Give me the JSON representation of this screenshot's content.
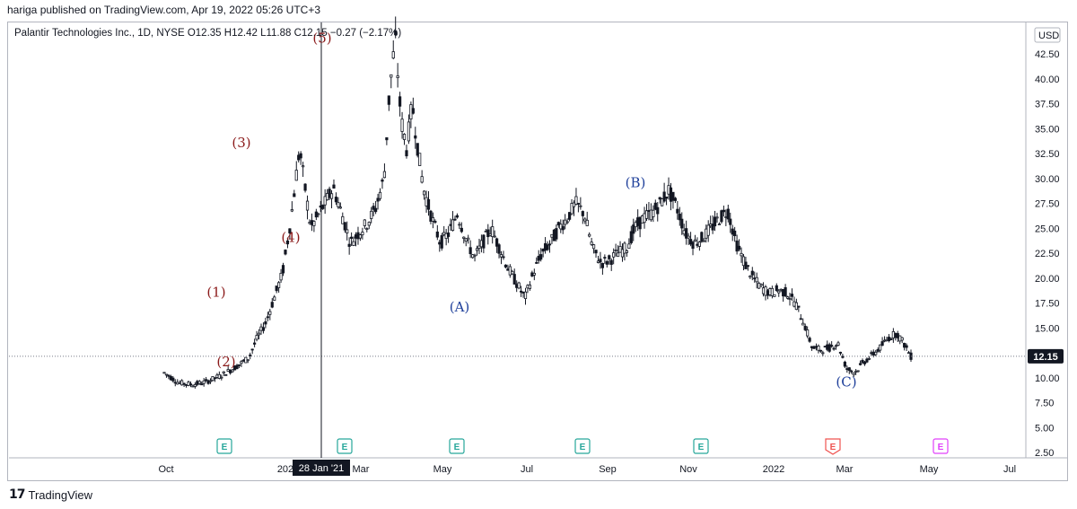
{
  "header": {
    "publish_line": "hariga published on TradingView.com, Apr 19, 2022 05:26 UTC+3"
  },
  "legend": {
    "symbol": "Palantir Technologies Inc., 1D, NYSE",
    "open": "O12.35",
    "high": "H12.42",
    "low": "L11.88",
    "close": "C12.15",
    "change": "−0.27 (−2.17%)"
  },
  "footer": {
    "logo_mark": "17",
    "logo_text": "TradingView"
  },
  "colors": {
    "candle": "#131722",
    "axis_border": "#b2b5be",
    "wave_dark_red": "#8b1a1a",
    "wave_blue": "#1e3f9a",
    "earnings_green": "#26a69a",
    "earnings_red": "#ef5350",
    "earnings_pink": "#e040fb",
    "axis_text": "#131722"
  },
  "chart_data": {
    "type": "candlestick",
    "currency_label": "USD",
    "y_ticks": [
      "2.50",
      "5.00",
      "7.50",
      "10.00",
      "12.50",
      "15.00",
      "17.50",
      "20.00",
      "22.50",
      "25.00",
      "27.50",
      "30.00",
      "32.50",
      "35.00",
      "37.50",
      "40.00",
      "42.50"
    ],
    "ylim": [
      0,
      45
    ],
    "x_ticks": [
      "Oct",
      "202",
      "Mar",
      "May",
      "Jul",
      "Sep",
      "Nov",
      "2022",
      "Mar",
      "May",
      "Jul"
    ],
    "crosshair_label": "28 Jan '21",
    "last_price_label": "12.15",
    "last_price": 12.15,
    "wave_labels_primary": [
      {
        "label": "(1)",
        "price": 18.5
      },
      {
        "label": "(2)",
        "price": 11.5
      },
      {
        "label": "(3)",
        "price": 33.5
      },
      {
        "label": "(4)",
        "price": 24.0
      },
      {
        "label": "(5)",
        "price": 44.0
      }
    ],
    "wave_labels_corrective": [
      {
        "label": "(A)",
        "price": 17.0
      },
      {
        "label": "(B)",
        "price": 29.5
      },
      {
        "label": "(C)",
        "price": 9.5
      }
    ],
    "earnings_markers": [
      "E",
      "E",
      "E",
      "E",
      "E",
      "E",
      "E"
    ],
    "price_path": [
      [
        0,
        10.5
      ],
      [
        5,
        9.5
      ],
      [
        10,
        9.3
      ],
      [
        15,
        9.6
      ],
      [
        20,
        10.2
      ],
      [
        25,
        11.0
      ],
      [
        30,
        12.0
      ],
      [
        33,
        14.0
      ],
      [
        36,
        15.5
      ],
      [
        39,
        18.0
      ],
      [
        42,
        20.5
      ],
      [
        45,
        26.0
      ],
      [
        48,
        33.0
      ],
      [
        50,
        29.0
      ],
      [
        52,
        25.0
      ],
      [
        55,
        26.5
      ],
      [
        58,
        28.0
      ],
      [
        60,
        29.0
      ],
      [
        63,
        26.5
      ],
      [
        66,
        23.5
      ],
      [
        69,
        24.5
      ],
      [
        72,
        25.5
      ],
      [
        75,
        27.0
      ],
      [
        78,
        30.0
      ],
      [
        80,
        39.0
      ],
      [
        82,
        44.0
      ],
      [
        84,
        36.0
      ],
      [
        86,
        33.0
      ],
      [
        88,
        37.5
      ],
      [
        90,
        33.0
      ],
      [
        92,
        29.0
      ],
      [
        95,
        26.0
      ],
      [
        98,
        23.5
      ],
      [
        101,
        24.5
      ],
      [
        104,
        26.5
      ],
      [
        107,
        24.0
      ],
      [
        110,
        22.0
      ],
      [
        113,
        23.5
      ],
      [
        116,
        25.0
      ],
      [
        119,
        23.0
      ],
      [
        122,
        21.0
      ],
      [
        125,
        19.5
      ],
      [
        128,
        18.0
      ],
      [
        131,
        20.5
      ],
      [
        134,
        22.5
      ],
      [
        137,
        23.5
      ],
      [
        140,
        25.0
      ],
      [
        143,
        26.0
      ],
      [
        146,
        27.5
      ],
      [
        149,
        26.5
      ],
      [
        152,
        23.0
      ],
      [
        155,
        21.5
      ],
      [
        158,
        21.8
      ],
      [
        161,
        22.5
      ],
      [
        164,
        23.0
      ],
      [
        167,
        25.0
      ],
      [
        170,
        26.0
      ],
      [
        173,
        26.5
      ],
      [
        176,
        27.5
      ],
      [
        179,
        28.8
      ],
      [
        182,
        27.0
      ],
      [
        185,
        24.5
      ],
      [
        188,
        23.5
      ],
      [
        191,
        24.0
      ],
      [
        194,
        25.0
      ],
      [
        197,
        26.0
      ],
      [
        200,
        26.8
      ],
      [
        203,
        23.5
      ],
      [
        206,
        21.5
      ],
      [
        209,
        20.0
      ],
      [
        212,
        19.0
      ],
      [
        215,
        18.5
      ],
      [
        218,
        18.8
      ],
      [
        221,
        18.5
      ],
      [
        224,
        17.5
      ],
      [
        227,
        15.5
      ],
      [
        230,
        13.0
      ],
      [
        233,
        12.8
      ],
      [
        236,
        13.0
      ],
      [
        239,
        13.5
      ],
      [
        242,
        11.0
      ],
      [
        245,
        10.5
      ],
      [
        248,
        11.5
      ],
      [
        251,
        12.2
      ],
      [
        254,
        13.0
      ],
      [
        257,
        14.0
      ],
      [
        260,
        14.5
      ],
      [
        263,
        13.2
      ],
      [
        265,
        12.15
      ]
    ]
  }
}
